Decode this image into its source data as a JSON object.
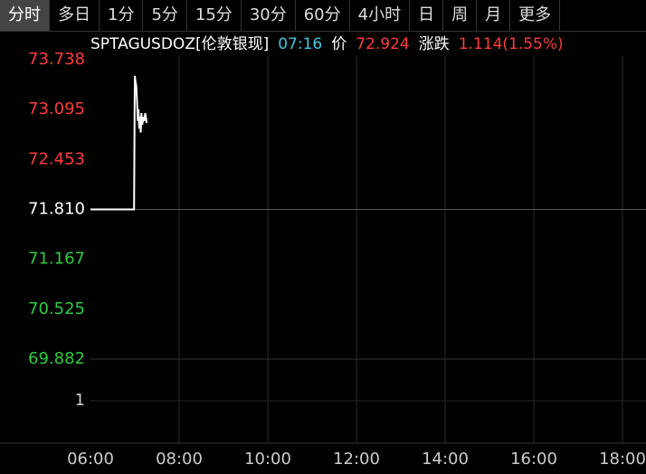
{
  "tabs": [
    "分时",
    "多日",
    "1分",
    "5分",
    "15分",
    "30分",
    "60分",
    "4小时",
    "日",
    "周",
    "月",
    "更多"
  ],
  "selected_tab": 0,
  "header": [
    {
      "text": "SPTAGUSDOZ[伦敦银现]",
      "color": "#ffffff"
    },
    {
      "text": "07:16",
      "color": "#3fc9e0"
    },
    {
      "text": "价",
      "color": "#ffffff"
    },
    {
      "text": "72.924",
      "color": "#ff3b3b"
    },
    {
      "text": "涨跌",
      "color": "#ffffff"
    },
    {
      "text": "1.114(1.55%)",
      "color": "#ff3b3b"
    }
  ],
  "chart_data": {
    "type": "line",
    "x": [
      "06:00",
      "06:59",
      "07:00",
      "07:01",
      "07:02",
      "07:03",
      "07:04",
      "07:05",
      "07:06",
      "07:07",
      "07:08",
      "07:09",
      "07:10",
      "07:11",
      "07:12",
      "07:13",
      "07:14",
      "07:15",
      "07:16"
    ],
    "series": [
      {
        "color": "#ffffff",
        "values": [
          71.81,
          71.81,
          73.53,
          73.45,
          73.4,
          73.2,
          72.95,
          73.1,
          72.85,
          73.0,
          72.8,
          73.05,
          72.9,
          72.95,
          73.0,
          72.95,
          73.05,
          73.0,
          72.924
        ]
      }
    ],
    "xlim": [
      "06:00",
      "18:30"
    ],
    "xticks": [
      "06:00",
      "08:00",
      "10:00",
      "12:00",
      "14:00",
      "16:00",
      "18:00"
    ],
    "ylim": [
      69.882,
      73.738
    ],
    "yticks": [
      73.738,
      73.095,
      72.453,
      {
        "value": 71.81,
        "label": "71.810"
      },
      71.167,
      70.525,
      69.882
    ],
    "ytick_colors": [
      "#ff3b3b",
      "#ff3b3b",
      "#ff3b3b",
      "#ffffff",
      "#2ecc40",
      "#2ecc40",
      "#2ecc40"
    ],
    "y2lim": [
      0,
      1
    ],
    "y2ticks": [
      1
    ],
    "grid": true
  }
}
